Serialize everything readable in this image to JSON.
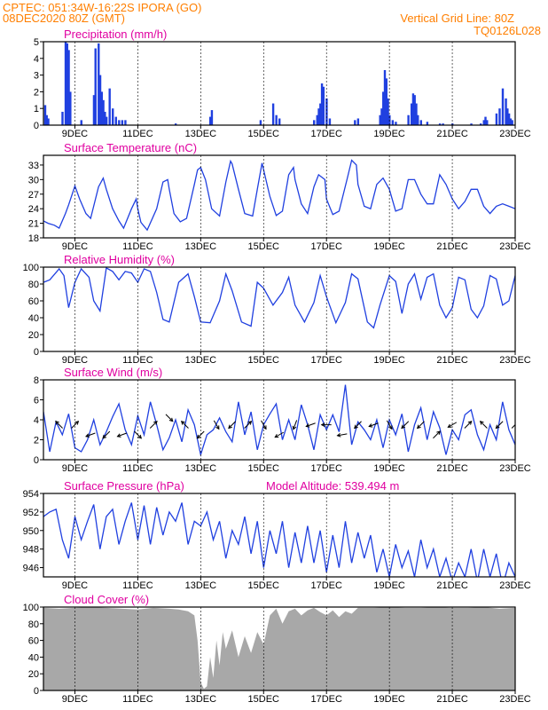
{
  "header": {
    "station": "CPTEC:   051:34W-16:22S   IPORA (GO)",
    "run": "08DEC2020 80Z (GMT)",
    "grid_note": "Vertical Grid Line: 80Z",
    "model": "TQ0126L028"
  },
  "colors": {
    "header": "#ff7f00",
    "title": "#e000a0",
    "line": "#2040e0",
    "bar": "#2040e0",
    "cloud": "#a8a8a8",
    "wind": "#000000"
  },
  "x_axis": {
    "labels": [
      "9DEC",
      "11DEC",
      "13DEC",
      "15DEC",
      "17DEC",
      "19DEC",
      "21DEC",
      "23DEC"
    ],
    "label_days": [
      9,
      11,
      13,
      15,
      17,
      19,
      21,
      23
    ],
    "range_days": [
      8.0,
      23.0
    ]
  },
  "chart_data": [
    {
      "type": "bar",
      "title": "Precipitation (mm/h)",
      "ylim": [
        0,
        5
      ],
      "yticks": [
        0,
        1,
        2,
        3,
        4,
        5
      ],
      "x_units": "day of December 2020",
      "x": [
        8.05,
        8.1,
        8.15,
        8.6,
        8.7,
        8.75,
        8.8,
        8.85,
        9.2,
        9.6,
        9.65,
        9.75,
        9.8,
        9.85,
        9.9,
        9.95,
        10.0,
        10.1,
        10.2,
        10.3,
        10.4,
        10.5,
        10.6,
        12.2,
        13.3,
        13.35,
        14.9,
        15.3,
        15.4,
        15.5,
        16.6,
        16.7,
        16.75,
        16.8,
        16.85,
        16.9,
        17.0,
        17.1,
        17.9,
        18.0,
        18.7,
        18.75,
        18.8,
        18.85,
        18.9,
        18.95,
        19.0,
        19.1,
        19.2,
        19.6,
        19.7,
        19.75,
        19.8,
        19.85,
        19.9,
        20.0,
        20.2,
        20.6,
        20.7,
        21.0,
        21.6,
        21.9,
        22.0,
        22.05,
        22.1,
        22.4,
        22.5,
        22.6,
        22.7,
        22.75,
        22.8,
        22.85,
        22.9
      ],
      "values": [
        1.2,
        0.6,
        0.4,
        0.8,
        5.0,
        4.9,
        4.5,
        2.0,
        0.3,
        1.8,
        4.6,
        4.9,
        3.0,
        2.0,
        1.5,
        0.8,
        0.5,
        2.2,
        1.0,
        0.5,
        0.3,
        0.3,
        0.3,
        0.1,
        0.5,
        0.9,
        0.3,
        1.3,
        0.6,
        0.4,
        0.3,
        0.6,
        1.0,
        1.3,
        2.5,
        2.3,
        1.6,
        0.4,
        0.3,
        0.4,
        0.6,
        1.0,
        2.0,
        3.3,
        2.8,
        1.6,
        0.6,
        0.3,
        0.2,
        0.6,
        1.3,
        1.9,
        1.8,
        1.3,
        0.6,
        0.3,
        0.2,
        0.1,
        0.1,
        0.1,
        0.1,
        0.1,
        0.3,
        0.5,
        0.3,
        0.7,
        1.0,
        2.2,
        1.6,
        1.0,
        0.7,
        0.4,
        0.3
      ]
    },
    {
      "type": "line",
      "title": "Surface Temperature (nC)",
      "ylim": [
        18,
        35
      ],
      "yticks": [
        18,
        21,
        24,
        27,
        30,
        33
      ],
      "series": [
        {
          "x_units": "day of December 2020",
          "x": [
            8.0,
            8.15,
            8.35,
            8.5,
            8.7,
            8.8,
            9.0,
            9.15,
            9.35,
            9.5,
            9.75,
            9.9,
            10.0,
            10.2,
            10.4,
            10.55,
            10.8,
            10.95,
            11.0,
            11.1,
            11.3,
            11.6,
            11.8,
            11.95,
            12.0,
            12.15,
            12.35,
            12.55,
            12.8,
            12.9,
            13.0,
            13.15,
            13.35,
            13.6,
            13.8,
            13.95,
            14.0,
            14.2,
            14.4,
            14.65,
            14.8,
            14.95,
            15.0,
            15.2,
            15.4,
            15.6,
            15.8,
            15.95,
            16.0,
            16.2,
            16.4,
            16.6,
            16.75,
            16.95,
            17.0,
            17.2,
            17.4,
            17.65,
            17.8,
            17.95,
            18.0,
            18.2,
            18.4,
            18.6,
            18.8,
            19.0,
            19.2,
            19.4,
            19.6,
            19.8,
            20.0,
            20.2,
            20.4,
            20.6,
            20.8,
            21.0,
            21.2,
            21.4,
            21.6,
            21.8,
            22.0,
            22.2,
            22.4,
            22.6,
            22.8,
            23.0
          ],
          "values": [
            21.5,
            21.0,
            20.6,
            20.0,
            23.0,
            24.8,
            28.7,
            26.0,
            23.0,
            22.0,
            28.5,
            30.3,
            28.0,
            24.0,
            21.5,
            20.0,
            24.0,
            26.0,
            24.0,
            21.2,
            19.6,
            24.0,
            29.5,
            30.0,
            28.0,
            23.0,
            21.3,
            22.0,
            29.0,
            32.0,
            32.5,
            30.0,
            24.0,
            22.5,
            29.5,
            33.8,
            33.2,
            28.0,
            23.0,
            22.5,
            28.0,
            33.4,
            32.0,
            26.5,
            22.6,
            23.5,
            31.0,
            32.5,
            30.0,
            25.0,
            23.0,
            28.5,
            31.0,
            30.0,
            26.0,
            22.8,
            23.5,
            30.0,
            34.0,
            33.0,
            29.0,
            24.5,
            24.0,
            29.0,
            30.3,
            28.0,
            23.5,
            24.0,
            30.0,
            30.0,
            27.0,
            25.0,
            25.0,
            31.0,
            29.0,
            26.0,
            24.0,
            25.5,
            28.0,
            28.0,
            24.5,
            23.0,
            24.5,
            25.0,
            24.5,
            24.0
          ]
        }
      ]
    },
    {
      "type": "line",
      "title": "Relative Humidity (%)",
      "ylim": [
        0,
        100
      ],
      "yticks": [
        0,
        20,
        40,
        60,
        80,
        100
      ],
      "series": [
        {
          "x_units": "day of December 2020",
          "x": [
            8.0,
            8.2,
            8.5,
            8.65,
            8.8,
            9.0,
            9.2,
            9.45,
            9.6,
            9.8,
            10.0,
            10.2,
            10.4,
            10.6,
            10.8,
            11.0,
            11.2,
            11.4,
            11.6,
            11.8,
            12.0,
            12.3,
            12.6,
            12.8,
            13.0,
            13.3,
            13.6,
            13.8,
            14.0,
            14.3,
            14.6,
            14.8,
            15.0,
            15.3,
            15.6,
            15.8,
            16.0,
            16.3,
            16.6,
            16.8,
            17.0,
            17.3,
            17.6,
            17.8,
            18.0,
            18.3,
            18.5,
            18.7,
            19.0,
            19.2,
            19.4,
            19.6,
            19.8,
            20.0,
            20.2,
            20.4,
            20.6,
            20.8,
            21.0,
            21.2,
            21.4,
            21.6,
            21.8,
            22.0,
            22.2,
            22.4,
            22.6,
            22.8,
            23.0
          ],
          "values": [
            82,
            85,
            98,
            90,
            52,
            82,
            98,
            88,
            60,
            48,
            99,
            95,
            85,
            95,
            93,
            82,
            98,
            95,
            70,
            38,
            35,
            82,
            92,
            65,
            35,
            34,
            60,
            92,
            72,
            35,
            30,
            82,
            75,
            55,
            70,
            88,
            55,
            35,
            58,
            90,
            65,
            34,
            58,
            92,
            86,
            35,
            28,
            55,
            90,
            83,
            45,
            80,
            92,
            62,
            88,
            92,
            55,
            40,
            52,
            88,
            85,
            50,
            40,
            54,
            90,
            86,
            55,
            60,
            90
          ]
        }
      ]
    },
    {
      "type": "line",
      "title": "Surface Wind (m/s)",
      "ylim": [
        0,
        8
      ],
      "yticks": [
        0,
        2,
        4,
        6,
        8
      ],
      "series": [
        {
          "x_units": "day of December 2020",
          "x": [
            8.0,
            8.2,
            8.4,
            8.6,
            8.8,
            9.0,
            9.2,
            9.4,
            9.6,
            9.8,
            10.0,
            10.2,
            10.4,
            10.6,
            10.8,
            11.0,
            11.2,
            11.4,
            11.6,
            11.8,
            12.0,
            12.2,
            12.4,
            12.6,
            12.8,
            13.0,
            13.2,
            13.4,
            13.6,
            13.8,
            14.0,
            14.2,
            14.4,
            14.6,
            14.8,
            15.0,
            15.2,
            15.4,
            15.6,
            15.8,
            16.0,
            16.2,
            16.4,
            16.6,
            16.8,
            17.0,
            17.2,
            17.4,
            17.6,
            17.8,
            18.0,
            18.2,
            18.4,
            18.6,
            18.8,
            19.0,
            19.2,
            19.4,
            19.6,
            19.8,
            20.0,
            20.2,
            20.4,
            20.6,
            20.8,
            21.0,
            21.2,
            21.4,
            21.6,
            21.8,
            22.0,
            22.2,
            22.4,
            22.6,
            22.8,
            23.0
          ],
          "values": [
            4.8,
            0.8,
            3.8,
            2.5,
            4.6,
            1.2,
            0.8,
            2.0,
            4.0,
            1.5,
            2.8,
            4.3,
            5.6,
            3.0,
            1.5,
            4.4,
            2.5,
            5.8,
            3.5,
            1.0,
            2.2,
            4.0,
            1.8,
            5.0,
            3.5,
            0.5,
            2.5,
            3.0,
            4.2,
            2.8,
            1.8,
            5.8,
            2.5,
            4.8,
            1.0,
            3.5,
            4.6,
            5.6,
            2.0,
            4.0,
            2.0,
            5.5,
            3.5,
            1.0,
            4.5,
            3.0,
            4.5,
            2.8,
            7.5,
            1.5,
            3.8,
            3.0,
            2.0,
            4.0,
            1.2,
            4.0,
            2.5,
            4.6,
            0.8,
            3.5,
            5.2,
            2.0,
            4.8,
            3.2,
            0.5,
            3.0,
            2.0,
            4.5,
            5.0,
            2.5,
            1.0,
            3.5,
            2.0,
            5.8,
            3.0,
            1.5
          ]
        }
      ],
      "arrows": {
        "x": [
          8.5,
          9.0,
          9.5,
          10.0,
          10.5,
          11.0,
          11.5,
          12.0,
          12.5,
          13.0,
          13.5,
          14.0,
          14.5,
          15.0,
          15.5,
          16.0,
          16.5,
          17.0,
          17.5,
          18.0,
          18.5,
          19.0,
          19.5,
          20.0,
          20.5,
          21.0,
          21.5,
          22.0,
          22.5,
          23.0
        ],
        "y": [
          3.5,
          3.5,
          2.5,
          2.5,
          2.5,
          2.5,
          3.5,
          4.2,
          3.5,
          2.5,
          3.5,
          3.5,
          3.5,
          3.5,
          2.5,
          3.5,
          3.5,
          3.5,
          2.5,
          3.5,
          3.5,
          3.5,
          3.5,
          3.5,
          2.5,
          3.5,
          3.5,
          3.5,
          3.5,
          3.5
        ],
        "direction_deg": [
          135,
          45,
          200,
          225,
          200,
          315,
          45,
          315,
          135,
          225,
          300,
          225,
          45,
          300,
          210,
          250,
          200,
          180,
          190,
          225,
          200,
          300,
          225,
          225,
          45,
          210,
          45,
          135,
          225,
          45
        ]
      }
    },
    {
      "type": "line",
      "title": "Surface Pressure (hPa)",
      "annotation": "Model Altitude: 539.494 m",
      "ylim": [
        945,
        954
      ],
      "yticks": [
        946,
        948,
        950,
        952,
        954
      ],
      "series": [
        {
          "x_units": "day of December 2020",
          "x": [
            8.0,
            8.2,
            8.4,
            8.6,
            8.8,
            9.0,
            9.2,
            9.4,
            9.6,
            9.8,
            10.0,
            10.2,
            10.4,
            10.6,
            10.8,
            11.0,
            11.2,
            11.4,
            11.6,
            11.8,
            12.0,
            12.2,
            12.4,
            12.6,
            12.8,
            13.0,
            13.2,
            13.4,
            13.6,
            13.8,
            14.0,
            14.2,
            14.4,
            14.6,
            14.8,
            15.0,
            15.2,
            15.4,
            15.6,
            15.8,
            16.0,
            16.2,
            16.4,
            16.6,
            16.8,
            17.0,
            17.2,
            17.4,
            17.6,
            17.8,
            18.0,
            18.2,
            18.4,
            18.6,
            18.8,
            19.0,
            19.2,
            19.4,
            19.6,
            19.8,
            20.0,
            20.2,
            20.4,
            20.6,
            20.8,
            21.0,
            21.2,
            21.4,
            21.6,
            21.8,
            22.0,
            22.2,
            22.4,
            22.6,
            22.8,
            23.0
          ],
          "values": [
            951.5,
            952.0,
            952.3,
            949.0,
            947.0,
            951.5,
            949.0,
            951.0,
            952.8,
            948.0,
            951.5,
            952.3,
            948.5,
            951.0,
            953.0,
            949.0,
            952.7,
            948.5,
            952.5,
            949.5,
            952.0,
            951.0,
            953.0,
            948.5,
            951.0,
            950.5,
            952.0,
            949.0,
            951.0,
            947.0,
            950.0,
            948.5,
            951.5,
            947.5,
            951.0,
            946.0,
            950.0,
            947.5,
            951.0,
            946.0,
            949.8,
            946.5,
            950.5,
            946.5,
            950.0,
            945.5,
            949.5,
            946.0,
            951.0,
            946.5,
            949.8,
            947.0,
            949.5,
            945.5,
            948.0,
            945.0,
            948.5,
            946.0,
            947.8,
            945.0,
            949.0,
            946.0,
            948.0,
            945.0,
            947.0,
            944.5,
            946.5,
            945.0,
            948.0,
            944.5,
            948.0,
            945.0,
            947.5,
            944.0,
            946.5,
            945.0
          ]
        }
      ]
    },
    {
      "type": "area",
      "title": "Cloud Cover (%)",
      "ylim": [
        0,
        100
      ],
      "yticks": [
        0,
        20,
        40,
        60,
        80,
        100
      ],
      "series": [
        {
          "x_units": "day of December 2020",
          "x": [
            8.0,
            8.5,
            9.0,
            9.5,
            10.0,
            10.5,
            11.0,
            11.5,
            12.0,
            12.3,
            12.6,
            12.8,
            12.9,
            13.0,
            13.1,
            13.2,
            13.3,
            13.4,
            13.5,
            13.6,
            13.7,
            13.8,
            14.0,
            14.2,
            14.4,
            14.6,
            14.8,
            15.0,
            15.2,
            15.4,
            15.6,
            15.8,
            16.0,
            16.2,
            16.4,
            16.6,
            16.8,
            17.0,
            17.2,
            17.4,
            17.6,
            17.8,
            18.0,
            18.5,
            19.0,
            19.5,
            20.0,
            20.5,
            21.0,
            21.5,
            22.0,
            22.5,
            23.0
          ],
          "values": [
            99,
            98,
            99,
            100,
            99,
            98,
            97,
            99,
            98,
            97,
            95,
            90,
            60,
            10,
            2,
            5,
            40,
            15,
            60,
            30,
            70,
            50,
            72,
            40,
            65,
            45,
            70,
            55,
            90,
            98,
            80,
            95,
            98,
            90,
            96,
            99,
            94,
            90,
            96,
            88,
            95,
            92,
            99,
            99,
            100,
            99,
            99,
            100,
            99,
            99,
            100,
            98,
            99
          ]
        }
      ]
    }
  ]
}
